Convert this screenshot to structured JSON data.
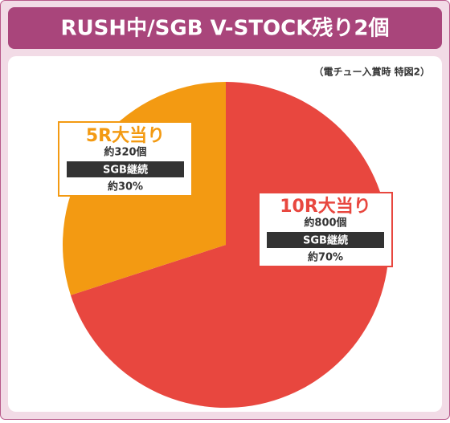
{
  "chart_data": {
    "type": "pie",
    "title": "RUSH中/SGB V-STOCK残り2個",
    "subtitle": "（電チュー入賞時 特図2）",
    "categories": [
      "10R大当り",
      "5R大当り"
    ],
    "values": [
      70,
      30
    ],
    "value_labels": [
      "約70%",
      "約30%"
    ],
    "amounts": [
      "約800個",
      "約320個"
    ],
    "notes": [
      "SGB継続",
      "SGB継続"
    ],
    "colors": [
      "#e8473f",
      "#f39a12"
    ]
  }
}
